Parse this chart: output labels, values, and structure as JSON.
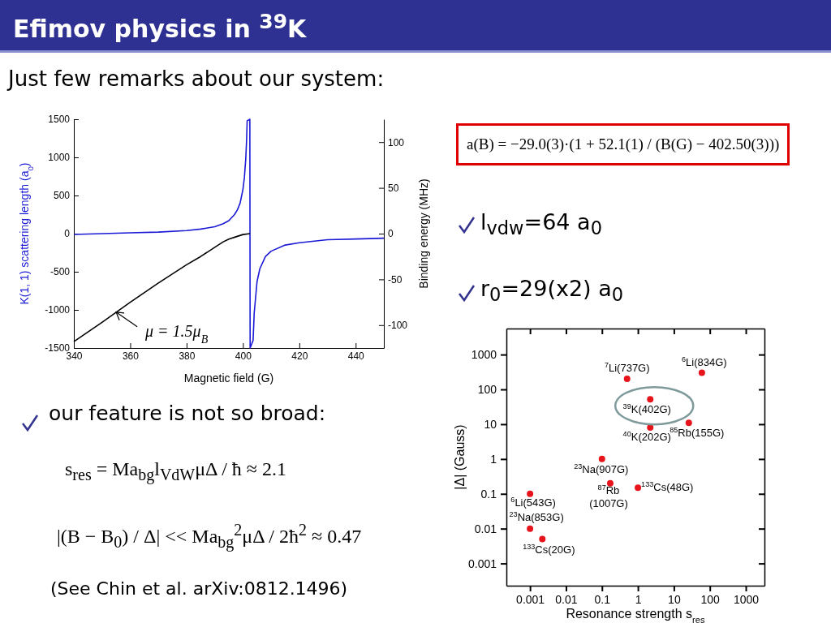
{
  "chart_data": [
    {
      "type": "other",
      "title": "Efimov physics in $^{39}$K",
      "annotations": [
        "Just few remarks about our system:",
        "a(B) = −29.0(3)·(1 + 52.1(1) / (B(G) − 402.50(3)))",
        "l$_{vdw}$=64 a$_{0}$",
        "r$_{0}$=29(x2) a$_{0}$",
        "our feature is not so broad:",
        "s$_{res}$ = Ma$_{bg}$l$_{VdW}$μΔ / ħ ≈ 2.1",
        "|(B − B$_{0}$) / Δ| << Ma$_{bg}$$^{2}$μΔ / 2ħ$^{2}$ ≈ 0.47",
        "(See Chin et al. arXiv:0812.1496)"
      ]
    },
    {
      "type": "line",
      "xlabel": "Magnetic field (G)",
      "ylabel": "K(1, 1) scattering length (a$_{0}$)",
      "y2label": "Binding energy (MHz)",
      "xlim": [
        340,
        450
      ],
      "xticks": [
        340,
        360,
        380,
        400,
        420,
        440
      ],
      "ylim": [
        -1500,
        1500
      ],
      "yticks": [
        -1500,
        -1000,
        -500,
        0,
        500,
        1000,
        1500
      ],
      "y2lim": [
        -125,
        125
      ],
      "y2ticks": [
        -100,
        -50,
        0,
        50,
        100
      ],
      "series": [
        {
          "color": "#1a1ad6",
          "x": [
            340,
            350,
            360,
            370,
            380,
            385,
            390,
            393,
            395,
            397,
            398,
            399,
            400,
            400.5,
            401,
            401.3,
            401.5,
            402.45,
            402.55,
            403.6,
            404,
            405,
            406,
            408,
            410,
            415,
            420,
            430,
            440,
            450
          ],
          "values": [
            -10,
            0,
            10,
            20,
            40,
            60,
            90,
            130,
            170,
            250,
            310,
            400,
            580,
            730,
            980,
            1230,
            1480,
            1500,
            -1500,
            -1400,
            -1040,
            -630,
            -460,
            -300,
            -230,
            -150,
            -120,
            -80,
            -70,
            -60
          ]
        },
        {
          "color": "#000000",
          "axis": "y2",
          "x": [
            340,
            350,
            360,
            370,
            380,
            385,
            390,
            393,
            395,
            398,
            400,
            402.5
          ],
          "values": [
            -118,
            -97,
            -75,
            -54,
            -34,
            -25,
            -15,
            -9,
            -6,
            -3,
            -1,
            0
          ]
        }
      ],
      "annotations": [
        {
          "text": "μ = 1.5μ$_{B}$",
          "x": 355,
          "y": -1030
        }
      ]
    },
    {
      "type": "scatter",
      "log": "xy",
      "marker": "circle",
      "xlabel": "Resonance strength s$_{res}$",
      "ylabel": "|Δ| (Gauss)",
      "xlim": [
        0.00022,
        3300
      ],
      "xticks": [
        0.001,
        0.01,
        0.1,
        1,
        10,
        100,
        1000
      ],
      "ylim": [
        0.00023,
        5600
      ],
      "yticks": [
        0.001,
        0.01,
        0.1,
        1,
        10,
        100,
        1000
      ],
      "series": [
        {
          "color": "#e8141b",
          "x": [
            0.5,
            60,
            2.2,
            2.2,
            26,
            0.1,
            0.17,
            1,
            0.001,
            0.001,
            0.0022
          ],
          "values": [
            200,
            300,
            52,
            8,
            11,
            1,
            0.2,
            0.15,
            0.1,
            0.01,
            0.005
          ]
        }
      ],
      "annotations": [
        {
          "text": "$^{7}$Li(737G)",
          "x": 0.5,
          "y": 200
        },
        {
          "text": "$^{6}$Li(834G)",
          "x": 60,
          "y": 300
        },
        {
          "text": "$^{39}$K(402G)",
          "x": 2.2,
          "y": 52
        },
        {
          "text": "$^{40}$K(202G)",
          "x": 2.2,
          "y": 8
        },
        {
          "text": "$^{85}$Rb(155G)",
          "x": 26,
          "y": 11
        },
        {
          "text": "$^{23}$Na(907G)",
          "x": 0.1,
          "y": 1
        },
        {
          "text": "$^{87}$Rb (1007G)",
          "x": 0.17,
          "y": 0.2
        },
        {
          "text": "$^{133}$Cs(48G)",
          "x": 1,
          "y": 0.15
        },
        {
          "text": "$^{6}$Li(543G)",
          "x": 0.001,
          "y": 0.1
        },
        {
          "text": "$^{23}$Na(853G)",
          "x": 0.001,
          "y": 0.01
        },
        {
          "text": "$^{133}$Cs(20G)",
          "x": 0.0022,
          "y": 0.005
        }
      ]
    }
  ]
}
